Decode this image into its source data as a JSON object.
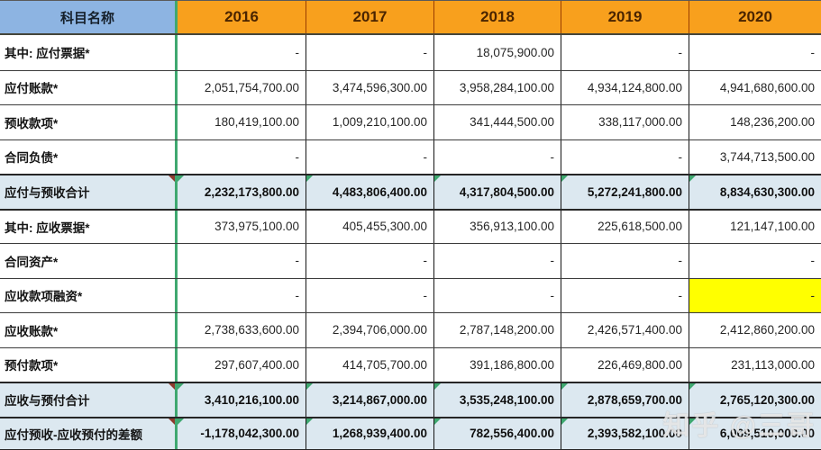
{
  "table": {
    "header": {
      "label": "科目名称",
      "years": [
        "2016",
        "2017",
        "2018",
        "2019",
        "2020"
      ]
    },
    "rows": [
      {
        "label": "其中: 应付票据*",
        "values": [
          "-",
          "-",
          "18,075,900.00",
          "-",
          "-"
        ],
        "total": false
      },
      {
        "label": "应付账款*",
        "values": [
          "2,051,754,700.00",
          "3,474,596,300.00",
          "3,958,284,100.00",
          "4,934,124,800.00",
          "4,941,680,600.00"
        ],
        "total": false
      },
      {
        "label": "预收款项*",
        "values": [
          "180,419,100.00",
          "1,009,210,100.00",
          "341,444,500.00",
          "338,117,000.00",
          "148,236,200.00"
        ],
        "total": false
      },
      {
        "label": "合同负债*",
        "values": [
          "-",
          "-",
          "-",
          "-",
          "3,744,713,500.00"
        ],
        "total": false
      },
      {
        "label": "应付与预收合计",
        "values": [
          "2,232,173,800.00",
          "4,483,806,400.00",
          "4,317,804,500.00",
          "5,272,241,800.00",
          "8,834,630,300.00"
        ],
        "total": true
      },
      {
        "label": "其中: 应收票据*",
        "values": [
          "373,975,100.00",
          "405,455,300.00",
          "356,913,100.00",
          "225,618,500.00",
          "121,147,100.00"
        ],
        "total": false
      },
      {
        "label": "合同资产*",
        "values": [
          "-",
          "-",
          "-",
          "-",
          "-"
        ],
        "total": false
      },
      {
        "label": "应收款项融资*",
        "values": [
          "-",
          "-",
          "-",
          "-",
          "-"
        ],
        "total": false,
        "highlight_col": 4
      },
      {
        "label": "应收账款*",
        "values": [
          "2,738,633,600.00",
          "2,394,706,000.00",
          "2,787,148,200.00",
          "2,426,571,400.00",
          "2,412,860,200.00"
        ],
        "total": false
      },
      {
        "label": "预付款项*",
        "values": [
          "297,607,400.00",
          "414,705,700.00",
          "391,186,800.00",
          "226,469,800.00",
          "231,113,000.00"
        ],
        "total": false
      },
      {
        "label": "应收与预付合计",
        "values": [
          "3,410,216,100.00",
          "3,214,867,000.00",
          "3,535,248,100.00",
          "2,878,659,700.00",
          "2,765,120,300.00"
        ],
        "total": true
      },
      {
        "label": "应付预收-应收预付的差额",
        "values": [
          "-1,178,042,300.00",
          "1,268,939,400.00",
          "782,556,400.00",
          "2,393,582,100.00",
          "6,069,510,000.00"
        ],
        "total": true
      }
    ]
  },
  "watermark": "知乎 @三哥",
  "colors": {
    "header_label_bg": "#8DB4E2",
    "header_year_bg": "#F8A01D",
    "header_year_text": "#4A2400",
    "total_row_bg": "#DCE8F0",
    "highlight_cell_bg": "#FFFF00",
    "column_divider_green": "#3FA870",
    "header_divider_red": "#993D00"
  }
}
